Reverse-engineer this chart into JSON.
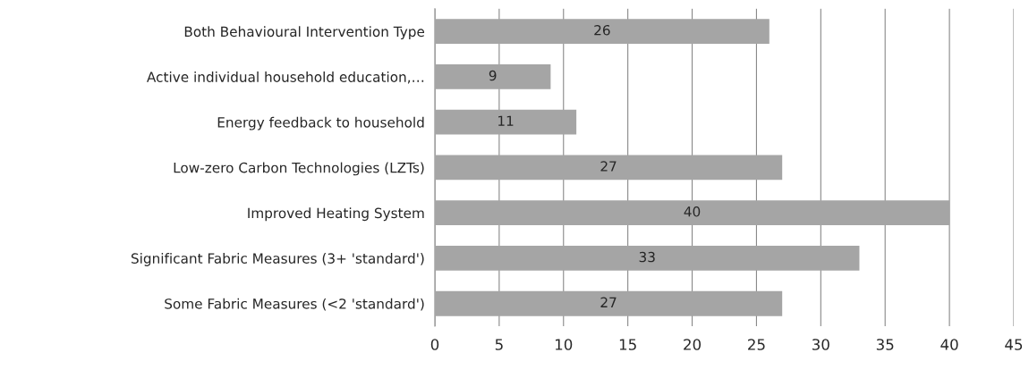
{
  "chart_data": {
    "type": "bar",
    "orientation": "horizontal",
    "categories": [
      "Both Behavioural Intervention Type",
      "Active individual household education,…",
      "Energy feedback to household",
      "Low-zero Carbon Technologies (LZTs)",
      "Improved Heating System",
      "Significant Fabric Measures (3+ 'standard')",
      "Some Fabric Measures (<2 'standard')"
    ],
    "values": [
      26,
      9,
      11,
      27,
      40,
      33,
      27
    ],
    "color": "#a5a5a5",
    "xlim": [
      0,
      45
    ],
    "xticks": [
      0,
      5,
      10,
      15,
      20,
      25,
      30,
      35,
      40,
      45
    ],
    "grid": "x",
    "data_labels": true
  }
}
